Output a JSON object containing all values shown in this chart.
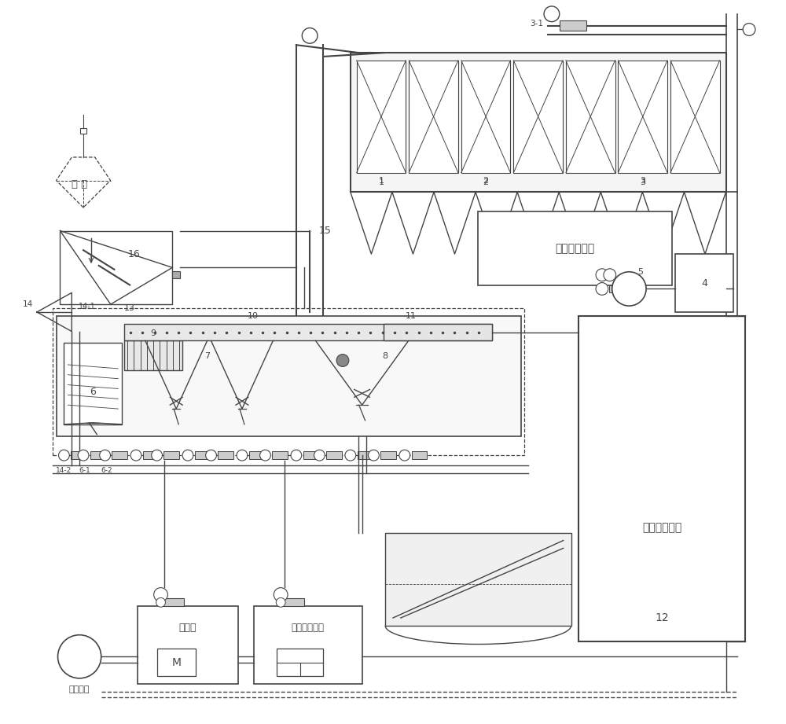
{
  "bg_color": "#ffffff",
  "lc": "#444444",
  "labels": {
    "garbage": "垃 圾",
    "label16": "16",
    "label15": "15",
    "label14": "14",
    "label14_1": "14-1",
    "label14_2": "14-2",
    "label13": "13",
    "label9": "9",
    "label6": "6",
    "label6_1": "6-1",
    "label6_2": "6-2",
    "label7": "7",
    "label8": "8",
    "label10": "10",
    "label11": "11",
    "label1": "1",
    "label2": "2",
    "label3": "3",
    "label3_1": "3-1",
    "label12": "12",
    "label5": "5",
    "label4": "4",
    "flue_gas": "烟气净化系统",
    "preheater": "预热器",
    "direct_preheater": "直接式空预器",
    "fan": "一次风机"
  }
}
